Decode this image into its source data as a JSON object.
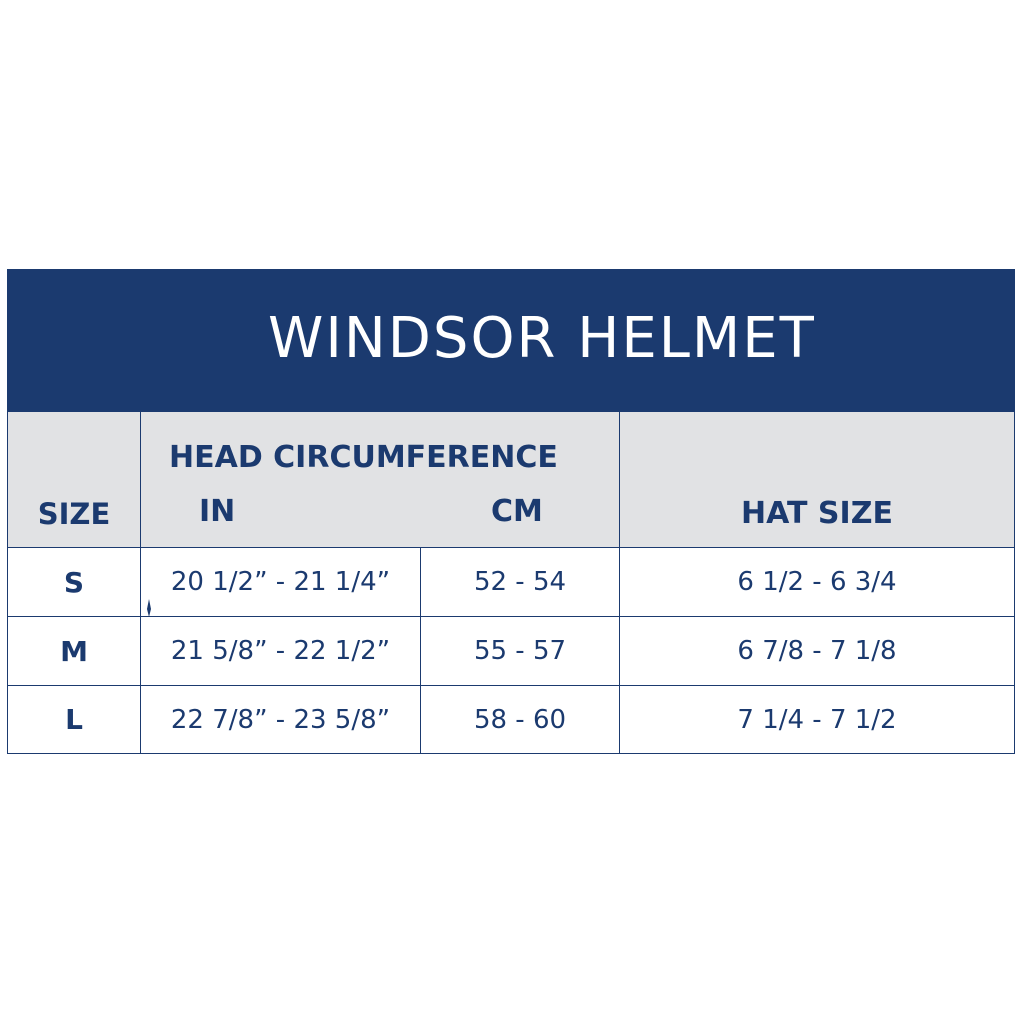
{
  "title": "WINDSOR HELMET",
  "logo": {
    "icon": "horse-head-shield-icon"
  },
  "colors": {
    "navy": "#1b3a6f",
    "header_bg": "#e1e2e4"
  },
  "headers": {
    "size": "SIZE",
    "head_circumference": "HEAD CIRCUMFERENCE",
    "in": "IN",
    "cm": "CM",
    "hat_size": "HAT SIZE"
  },
  "rows": [
    {
      "size": "S",
      "in": "20 1/2” - 21 1/4”",
      "cm": "52 - 54",
      "hat": "6 1/2 - 6 3/4"
    },
    {
      "size": "M",
      "in": "21 5/8” - 22 1/2”",
      "cm": "55 - 57",
      "hat": "6 7/8 - 7 1/8"
    },
    {
      "size": "L",
      "in": "22 7/8” - 23 5/8”",
      "cm": "58 - 60",
      "hat": "7 1/4 - 7 1/2"
    }
  ]
}
